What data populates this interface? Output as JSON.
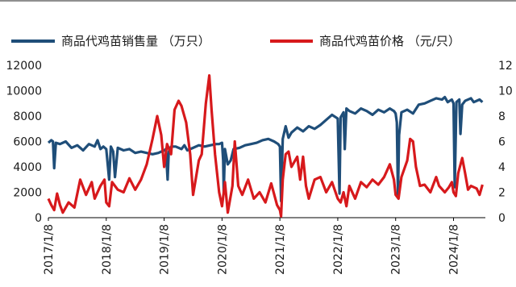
{
  "chart_data": {
    "type": "line",
    "x_labels": [
      "2017/1/8",
      "2018/1/8",
      "2019/1/8",
      "2020/1/8",
      "2021/1/8",
      "2022/1/8",
      "2023/1/8",
      "2024/1/8"
    ],
    "y_left": {
      "ylim": [
        0,
        12000
      ],
      "ticks": [
        "0",
        "2000",
        "4000",
        "6000",
        "8000",
        "10000",
        "12000"
      ]
    },
    "y_right": {
      "ylim": [
        0,
        12
      ],
      "ticks": [
        "0",
        "2",
        "4",
        "6",
        "8",
        "10",
        "12"
      ]
    },
    "grid": false,
    "legend_position": "top",
    "series": [
      {
        "name": "商品代鸡苗销售量  （万只）",
        "axis": "left",
        "color": "#1f4e79",
        "points": [
          [
            2017.0,
            5900
          ],
          [
            2017.05,
            6100
          ],
          [
            2017.08,
            6000
          ],
          [
            2017.1,
            3900
          ],
          [
            2017.13,
            5900
          ],
          [
            2017.2,
            5800
          ],
          [
            2017.3,
            6000
          ],
          [
            2017.4,
            5500
          ],
          [
            2017.5,
            5700
          ],
          [
            2017.6,
            5300
          ],
          [
            2017.7,
            5800
          ],
          [
            2017.8,
            5600
          ],
          [
            2017.85,
            6100
          ],
          [
            2017.9,
            5400
          ],
          [
            2017.95,
            5600
          ],
          [
            2018.0,
            5400
          ],
          [
            2018.05,
            3000
          ],
          [
            2018.08,
            5600
          ],
          [
            2018.12,
            5200
          ],
          [
            2018.15,
            3200
          ],
          [
            2018.2,
            5500
          ],
          [
            2018.3,
            5300
          ],
          [
            2018.4,
            5400
          ],
          [
            2018.5,
            5100
          ],
          [
            2018.6,
            5200
          ],
          [
            2018.7,
            5100
          ],
          [
            2018.8,
            5000
          ],
          [
            2018.9,
            5100
          ],
          [
            2019.0,
            5300
          ],
          [
            2019.03,
            5400
          ],
          [
            2019.06,
            3000
          ],
          [
            2019.08,
            5200
          ],
          [
            2019.12,
            5600
          ],
          [
            2019.2,
            5600
          ],
          [
            2019.3,
            5400
          ],
          [
            2019.35,
            5700
          ],
          [
            2019.4,
            5300
          ],
          [
            2019.5,
            5500
          ],
          [
            2019.6,
            5700
          ],
          [
            2019.7,
            5600
          ],
          [
            2019.8,
            5700
          ],
          [
            2019.9,
            5800
          ],
          [
            2019.95,
            5800
          ],
          [
            2020.0,
            5900
          ],
          [
            2020.02,
            4500
          ],
          [
            2020.03,
            2000
          ],
          [
            2020.05,
            5400
          ],
          [
            2020.1,
            4200
          ],
          [
            2020.15,
            4500
          ],
          [
            2020.2,
            5400
          ],
          [
            2020.3,
            5500
          ],
          [
            2020.4,
            5700
          ],
          [
            2020.5,
            5800
          ],
          [
            2020.6,
            5900
          ],
          [
            2020.7,
            6100
          ],
          [
            2020.8,
            6200
          ],
          [
            2020.9,
            6000
          ],
          [
            2020.97,
            5800
          ],
          [
            2021.0,
            5600
          ],
          [
            2021.02,
            1300
          ],
          [
            2021.05,
            6200
          ],
          [
            2021.1,
            7200
          ],
          [
            2021.15,
            6300
          ],
          [
            2021.2,
            6700
          ],
          [
            2021.3,
            7100
          ],
          [
            2021.4,
            6800
          ],
          [
            2021.5,
            7200
          ],
          [
            2021.6,
            7000
          ],
          [
            2021.7,
            7300
          ],
          [
            2021.8,
            7700
          ],
          [
            2021.9,
            8100
          ],
          [
            2022.0,
            7800
          ],
          [
            2022.03,
            1900
          ],
          [
            2022.05,
            7900
          ],
          [
            2022.1,
            8300
          ],
          [
            2022.12,
            5400
          ],
          [
            2022.15,
            8600
          ],
          [
            2022.2,
            8400
          ],
          [
            2022.3,
            8200
          ],
          [
            2022.4,
            8600
          ],
          [
            2022.5,
            8400
          ],
          [
            2022.6,
            8100
          ],
          [
            2022.7,
            8500
          ],
          [
            2022.8,
            8300
          ],
          [
            2022.9,
            8600
          ],
          [
            2022.97,
            8400
          ],
          [
            2023.0,
            8200
          ],
          [
            2023.02,
            7500
          ],
          [
            2023.04,
            1800
          ],
          [
            2023.06,
            6500
          ],
          [
            2023.1,
            8300
          ],
          [
            2023.2,
            8500
          ],
          [
            2023.3,
            8200
          ],
          [
            2023.4,
            8900
          ],
          [
            2023.5,
            9000
          ],
          [
            2023.6,
            9200
          ],
          [
            2023.7,
            9400
          ],
          [
            2023.8,
            9300
          ],
          [
            2023.85,
            9500
          ],
          [
            2023.9,
            9100
          ],
          [
            2023.97,
            9300
          ],
          [
            2024.0,
            9000
          ],
          [
            2024.02,
            2400
          ],
          [
            2024.05,
            9100
          ],
          [
            2024.1,
            9300
          ],
          [
            2024.12,
            6600
          ],
          [
            2024.15,
            8900
          ],
          [
            2024.2,
            9200
          ],
          [
            2024.3,
            9400
          ],
          [
            2024.35,
            9100
          ],
          [
            2024.45,
            9300
          ],
          [
            2024.5,
            9100
          ]
        ]
      },
      {
        "name": "商品代鸡苗价格  （元/只）",
        "axis": "right",
        "color": "#d7191c",
        "points": [
          [
            2017.0,
            1.5
          ],
          [
            2017.05,
            1.0
          ],
          [
            2017.1,
            0.6
          ],
          [
            2017.15,
            1.9
          ],
          [
            2017.2,
            1.0
          ],
          [
            2017.25,
            0.4
          ],
          [
            2017.35,
            1.2
          ],
          [
            2017.45,
            0.8
          ],
          [
            2017.55,
            3.0
          ],
          [
            2017.65,
            1.8
          ],
          [
            2017.75,
            2.8
          ],
          [
            2017.8,
            1.5
          ],
          [
            2017.9,
            2.5
          ],
          [
            2017.97,
            3.0
          ],
          [
            2018.0,
            1.2
          ],
          [
            2018.05,
            0.9
          ],
          [
            2018.1,
            2.8
          ],
          [
            2018.2,
            2.2
          ],
          [
            2018.3,
            2.0
          ],
          [
            2018.4,
            3.1
          ],
          [
            2018.5,
            2.2
          ],
          [
            2018.6,
            3.0
          ],
          [
            2018.7,
            4.2
          ],
          [
            2018.8,
            6.2
          ],
          [
            2018.88,
            8.0
          ],
          [
            2018.95,
            6.5
          ],
          [
            2019.0,
            4.0
          ],
          [
            2019.05,
            5.8
          ],
          [
            2019.12,
            5.0
          ],
          [
            2019.18,
            8.5
          ],
          [
            2019.25,
            9.2
          ],
          [
            2019.3,
            8.8
          ],
          [
            2019.38,
            7.5
          ],
          [
            2019.45,
            5.0
          ],
          [
            2019.5,
            1.8
          ],
          [
            2019.6,
            4.5
          ],
          [
            2019.65,
            5.0
          ],
          [
            2019.72,
            9.0
          ],
          [
            2019.78,
            11.2
          ],
          [
            2019.82,
            8.5
          ],
          [
            2019.88,
            5.0
          ],
          [
            2019.95,
            2.0
          ],
          [
            2020.0,
            0.9
          ],
          [
            2020.05,
            2.8
          ],
          [
            2020.1,
            0.4
          ],
          [
            2020.18,
            2.5
          ],
          [
            2020.22,
            6.0
          ],
          [
            2020.28,
            2.5
          ],
          [
            2020.35,
            1.8
          ],
          [
            2020.45,
            3.0
          ],
          [
            2020.55,
            1.5
          ],
          [
            2020.65,
            2.0
          ],
          [
            2020.75,
            1.2
          ],
          [
            2020.85,
            2.7
          ],
          [
            2020.95,
            1.0
          ],
          [
            2021.0,
            0.6
          ],
          [
            2021.02,
            0.1
          ],
          [
            2021.05,
            3.0
          ],
          [
            2021.1,
            5.0
          ],
          [
            2021.15,
            5.2
          ],
          [
            2021.2,
            4.0
          ],
          [
            2021.3,
            4.8
          ],
          [
            2021.35,
            3.0
          ],
          [
            2021.4,
            4.8
          ],
          [
            2021.45,
            2.5
          ],
          [
            2021.5,
            1.5
          ],
          [
            2021.6,
            3.0
          ],
          [
            2021.7,
            3.2
          ],
          [
            2021.8,
            2.0
          ],
          [
            2021.9,
            2.8
          ],
          [
            2022.0,
            1.5
          ],
          [
            2022.05,
            1.2
          ],
          [
            2022.1,
            2.0
          ],
          [
            2022.15,
            0.9
          ],
          [
            2022.2,
            2.5
          ],
          [
            2022.3,
            1.5
          ],
          [
            2022.4,
            2.8
          ],
          [
            2022.5,
            2.4
          ],
          [
            2022.6,
            3.0
          ],
          [
            2022.7,
            2.6
          ],
          [
            2022.8,
            3.2
          ],
          [
            2022.9,
            4.2
          ],
          [
            2022.97,
            3.0
          ],
          [
            2023.0,
            1.8
          ],
          [
            2023.05,
            1.5
          ],
          [
            2023.1,
            3.2
          ],
          [
            2023.2,
            4.5
          ],
          [
            2023.25,
            6.2
          ],
          [
            2023.3,
            6.0
          ],
          [
            2023.35,
            4.0
          ],
          [
            2023.42,
            2.5
          ],
          [
            2023.5,
            2.6
          ],
          [
            2023.6,
            2.0
          ],
          [
            2023.7,
            3.2
          ],
          [
            2023.75,
            2.5
          ],
          [
            2023.85,
            2.0
          ],
          [
            2023.92,
            2.4
          ],
          [
            2023.97,
            2.8
          ],
          [
            2024.0,
            2.0
          ],
          [
            2024.04,
            1.7
          ],
          [
            2024.08,
            3.5
          ],
          [
            2024.15,
            4.7
          ],
          [
            2024.2,
            3.5
          ],
          [
            2024.25,
            2.2
          ],
          [
            2024.3,
            2.5
          ],
          [
            2024.4,
            2.3
          ],
          [
            2024.45,
            1.8
          ],
          [
            2024.5,
            2.6
          ]
        ]
      }
    ]
  }
}
